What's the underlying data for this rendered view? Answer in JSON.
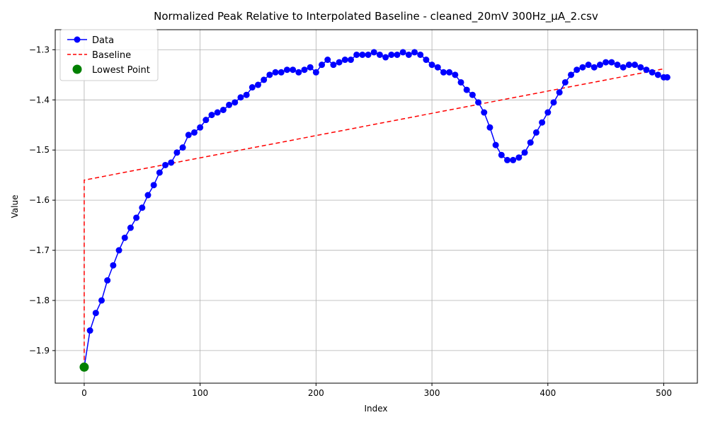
{
  "chart_data": {
    "type": "line",
    "title": "Normalized Peak Relative to Interpolated Baseline - cleaned_20mV 300Hz_μA_2.csv",
    "xlabel": "Index",
    "ylabel": "Value",
    "xlim": [
      -25,
      529
    ],
    "ylim": [
      -1.965,
      -1.26
    ],
    "xticks": [
      0,
      100,
      200,
      300,
      400,
      500
    ],
    "yticks": [
      -1.9,
      -1.8,
      -1.7,
      -1.6,
      -1.5,
      -1.4,
      -1.3
    ],
    "grid": true,
    "legend_position": "top-left",
    "colors": {
      "data": "#0000ff",
      "baseline": "#ff0000",
      "lowest": "#008000"
    },
    "legend": [
      {
        "label": "Data",
        "style": "line-marker"
      },
      {
        "label": "Baseline",
        "style": "dashed"
      },
      {
        "label": "Lowest Point",
        "style": "marker"
      }
    ],
    "series": [
      {
        "name": "Data",
        "x": [
          0,
          5,
          10,
          15,
          20,
          25,
          30,
          35,
          40,
          45,
          50,
          55,
          60,
          65,
          70,
          75,
          80,
          85,
          90,
          95,
          100,
          105,
          110,
          115,
          120,
          125,
          130,
          135,
          140,
          145,
          150,
          155,
          160,
          165,
          170,
          175,
          180,
          185,
          190,
          195,
          200,
          205,
          210,
          215,
          220,
          225,
          230,
          235,
          240,
          245,
          250,
          255,
          260,
          265,
          270,
          275,
          280,
          285,
          290,
          295,
          300,
          305,
          310,
          315,
          320,
          325,
          330,
          335,
          340,
          345,
          350,
          355,
          360,
          365,
          370,
          375,
          380,
          385,
          390,
          395,
          400,
          405,
          410,
          415,
          420,
          425,
          430,
          435,
          440,
          445,
          450,
          455,
          460,
          465,
          470,
          475,
          480,
          485,
          490,
          495,
          500,
          503
        ],
        "y": [
          -1.933,
          -1.86,
          -1.825,
          -1.8,
          -1.76,
          -1.73,
          -1.7,
          -1.675,
          -1.655,
          -1.635,
          -1.615,
          -1.59,
          -1.57,
          -1.545,
          -1.53,
          -1.525,
          -1.505,
          -1.495,
          -1.47,
          -1.465,
          -1.455,
          -1.44,
          -1.43,
          -1.425,
          -1.42,
          -1.41,
          -1.405,
          -1.395,
          -1.39,
          -1.375,
          -1.37,
          -1.36,
          -1.35,
          -1.345,
          -1.345,
          -1.34,
          -1.34,
          -1.345,
          -1.34,
          -1.335,
          -1.345,
          -1.33,
          -1.32,
          -1.33,
          -1.325,
          -1.32,
          -1.32,
          -1.31,
          -1.31,
          -1.31,
          -1.305,
          -1.31,
          -1.315,
          -1.31,
          -1.31,
          -1.305,
          -1.31,
          -1.305,
          -1.31,
          -1.32,
          -1.33,
          -1.335,
          -1.345,
          -1.345,
          -1.35,
          -1.365,
          -1.38,
          -1.39,
          -1.405,
          -1.425,
          -1.455,
          -1.49,
          -1.51,
          -1.52,
          -1.52,
          -1.515,
          -1.505,
          -1.485,
          -1.465,
          -1.445,
          -1.425,
          -1.405,
          -1.385,
          -1.365,
          -1.35,
          -1.34,
          -1.335,
          -1.33,
          -1.335,
          -1.33,
          -1.325,
          -1.325,
          -1.33,
          -1.335,
          -1.33,
          -1.33,
          -1.335,
          -1.34,
          -1.345,
          -1.35,
          -1.355,
          -1.355
        ]
      },
      {
        "name": "Baseline",
        "x": [
          0,
          0,
          500
        ],
        "y": [
          -1.933,
          -1.56,
          -1.338
        ]
      }
    ],
    "lowest_point": {
      "x": 0,
      "y": -1.933
    }
  }
}
